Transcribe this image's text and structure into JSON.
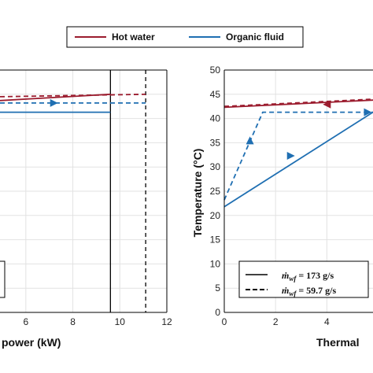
{
  "legend": {
    "entries": [
      {
        "label": "Hot water",
        "color": "#9b1c2e"
      },
      {
        "label": "Organic fluid",
        "color": "#1f6fb2"
      }
    ]
  },
  "chart_data": [
    {
      "type": "line",
      "xlabel": "power  (kW)",
      "ylabel": "",
      "xlim": [
        4.9,
        12
      ],
      "ylim": [
        0,
        50
      ],
      "x_ticks": [
        6,
        8,
        10,
        12
      ],
      "grid": true,
      "series": [
        {
          "name": "Hot water",
          "style": "solid",
          "color": "#9b1c2e",
          "x": [
            4.9,
            9.6
          ],
          "y": [
            43.7,
            45.0
          ]
        },
        {
          "name": "Hot water",
          "style": "dashed",
          "color": "#9b1c2e",
          "x": [
            4.9,
            11.1
          ],
          "y": [
            44.5,
            45.0
          ]
        },
        {
          "name": "Organic fluid",
          "style": "solid",
          "color": "#1f6fb2",
          "x": [
            4.9,
            9.6
          ],
          "y": [
            41.3,
            41.3
          ]
        },
        {
          "name": "Organic fluid",
          "style": "dashed",
          "color": "#1f6fb2",
          "x": [
            4.9,
            11.1
          ],
          "y": [
            43.2,
            43.2
          ]
        }
      ],
      "vertical_lines": [
        {
          "x": 9.6,
          "style": "solid"
        },
        {
          "x": 11.1,
          "style": "dashed"
        }
      ]
    },
    {
      "type": "line",
      "xlabel": "Thermal",
      "ylabel": "Temperature  (°C)",
      "xlim": [
        0,
        5.8
      ],
      "ylim": [
        0,
        50
      ],
      "x_ticks": [
        0,
        2,
        4
      ],
      "y_ticks": [
        0,
        5,
        10,
        15,
        20,
        25,
        30,
        35,
        40,
        45,
        50
      ],
      "grid": true,
      "series": [
        {
          "name": "Hot water",
          "style": "solid",
          "color": "#9b1c2e",
          "x": [
            0,
            5.8
          ],
          "y": [
            42.3,
            43.8
          ]
        },
        {
          "name": "Hot water",
          "style": "dashed",
          "color": "#9b1c2e",
          "x": [
            0,
            5.8
          ],
          "y": [
            42.5,
            44.0
          ]
        },
        {
          "name": "Organic fluid",
          "style": "solid",
          "color": "#1f6fb2",
          "x": [
            0,
            5.8
          ],
          "y": [
            21.8,
            41.3
          ]
        },
        {
          "name": "Organic fluid",
          "style": "dashed",
          "color": "#1f6fb2",
          "x": [
            0,
            1.5,
            5.8
          ],
          "y": [
            23.2,
            41.3,
            41.3
          ]
        }
      ],
      "inset_legend": [
        {
          "style": "solid",
          "lhs": "ṁ",
          "sub": "wf",
          "value": "= 173 g/s"
        },
        {
          "style": "dashed",
          "lhs": "ṁ",
          "sub": "wf",
          "value": "= 59.7 g/s"
        }
      ]
    }
  ]
}
